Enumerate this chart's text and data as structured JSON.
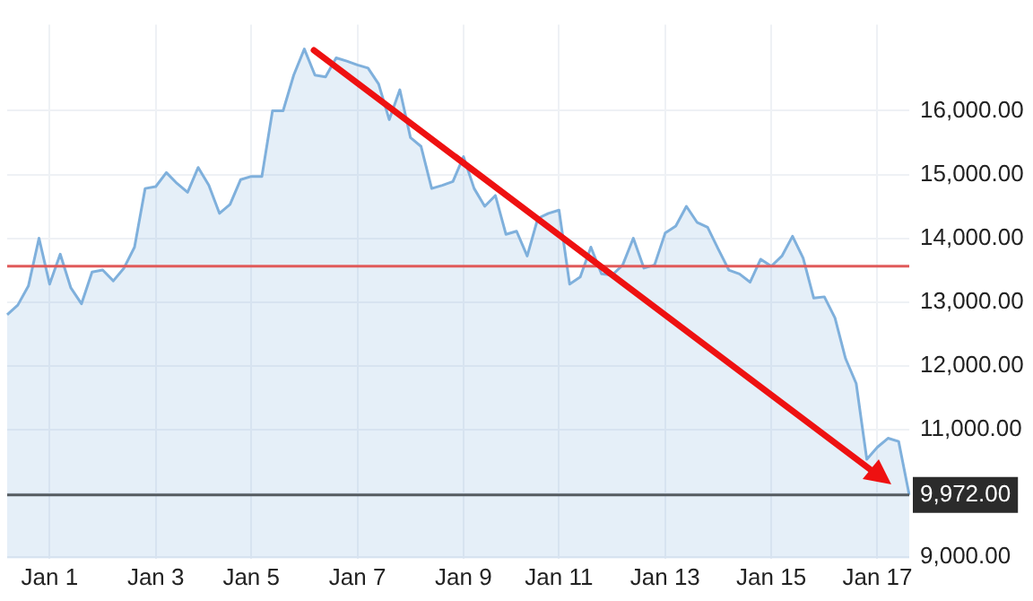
{
  "chart_data": {
    "type": "area",
    "categories": [
      null,
      null,
      null,
      null,
      "Jan 1",
      null,
      null,
      null,
      null,
      null,
      null,
      null,
      null,
      null,
      "Jan 3",
      null,
      null,
      null,
      null,
      null,
      null,
      null,
      null,
      "Jan 5",
      null,
      null,
      null,
      null,
      null,
      null,
      null,
      null,
      null,
      "Jan 7",
      null,
      null,
      null,
      null,
      null,
      null,
      null,
      null,
      null,
      "Jan 9",
      null,
      null,
      null,
      null,
      null,
      null,
      null,
      null,
      "Jan 11",
      null,
      null,
      null,
      null,
      null,
      null,
      null,
      null,
      null,
      "Jan 13",
      null,
      null,
      null,
      null,
      null,
      null,
      null,
      null,
      null,
      "Jan 15",
      null,
      null,
      null,
      null,
      null,
      null,
      null,
      null,
      null,
      "Jan 17",
      null,
      null,
      null
    ],
    "series": [
      {
        "color": "#7fb0dc",
        "values": [
          12800,
          12950,
          13250,
          14000,
          13280,
          13750,
          13220,
          12970,
          13470,
          13500,
          13330,
          13530,
          13860,
          14780,
          14810,
          15030,
          14860,
          14720,
          15110,
          14830,
          14390,
          14530,
          14920,
          14970,
          14970,
          16000,
          16000,
          16560,
          16970,
          16560,
          16530,
          16830,
          16780,
          16720,
          16670,
          16420,
          15860,
          16330,
          15580,
          15440,
          14780,
          14830,
          14890,
          15280,
          14780,
          14500,
          14670,
          14060,
          14110,
          13720,
          14310,
          14390,
          14440,
          13280,
          13390,
          13860,
          13440,
          13420,
          13580,
          14000,
          13530,
          13580,
          14080,
          14190,
          14500,
          14250,
          14170,
          13830,
          13500,
          13440,
          13310,
          13670,
          13560,
          13720,
          14030,
          13690,
          13060,
          13080,
          12750,
          12110,
          11720,
          10530,
          10720,
          10860,
          10810,
          9970
        ]
      }
    ],
    "ylim": [
      8970,
      17350
    ],
    "yticks": [
      {
        "value": 9000,
        "label": "9,000.00"
      },
      {
        "value": 10000,
        "label": null
      },
      {
        "value": 11000,
        "label": "11,000.00"
      },
      {
        "value": 12000,
        "label": "12,000.00"
      },
      {
        "value": 13000,
        "label": "13,000.00"
      },
      {
        "value": 14000,
        "label": "14,000.00"
      },
      {
        "value": 15000,
        "label": "15,000.00"
      },
      {
        "value": 16000,
        "label": "16,000.00"
      }
    ],
    "ref_lines": [
      {
        "axis": "y",
        "value": 13560,
        "label": null,
        "color": "#e05a5a"
      },
      {
        "axis": "y",
        "value": 9972,
        "label": "9,972.00",
        "color": "#555b60"
      }
    ],
    "grid": true,
    "legend": false,
    "marker": "none"
  }
}
